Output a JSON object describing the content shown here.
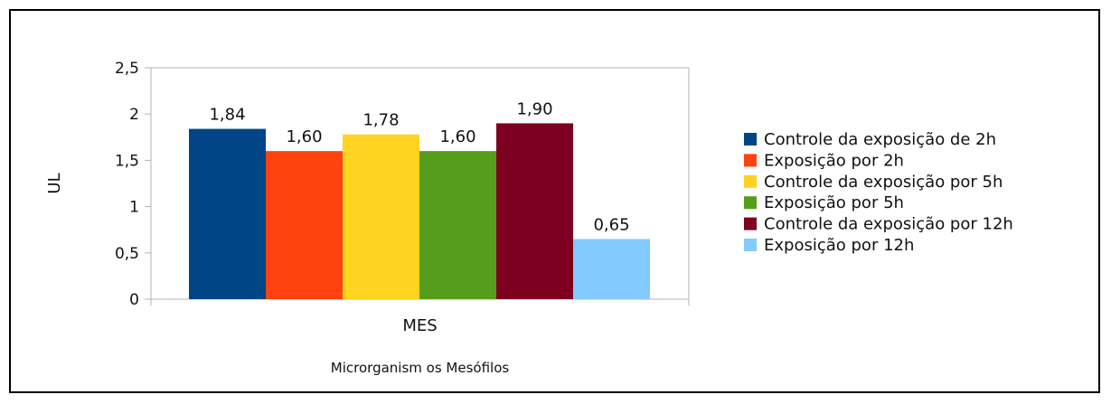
{
  "chart_data": {
    "type": "bar",
    "categories": [
      "MES"
    ],
    "series": [
      {
        "name": "Controle da exposição de 2h",
        "values": [
          1.84
        ],
        "label": "1,84",
        "color": "#004586"
      },
      {
        "name": "Exposição por 2h",
        "values": [
          1.6
        ],
        "label": "1,60",
        "color": "#ff420e"
      },
      {
        "name": "Controle da exposição por 5h",
        "values": [
          1.78
        ],
        "label": "1,78",
        "color": "#ffd320"
      },
      {
        "name": "Exposição por 5h",
        "values": [
          1.6
        ],
        "label": "1,60",
        "color": "#579d1c"
      },
      {
        "name": "Controle da exposição por 12h",
        "values": [
          1.9
        ],
        "label": "1,90",
        "color": "#7e0021"
      },
      {
        "name": "Exposição por 12h",
        "values": [
          0.65
        ],
        "label": "0,65",
        "color": "#83caff"
      }
    ],
    "yticks": [
      "0",
      "0,5",
      "1",
      "1,5",
      "2",
      "2,5"
    ],
    "ylim": [
      0,
      2.5
    ],
    "ylabel": "UL",
    "xlabel": "Microrganism os Mesófilos",
    "legend_position": "right",
    "grid": false
  }
}
